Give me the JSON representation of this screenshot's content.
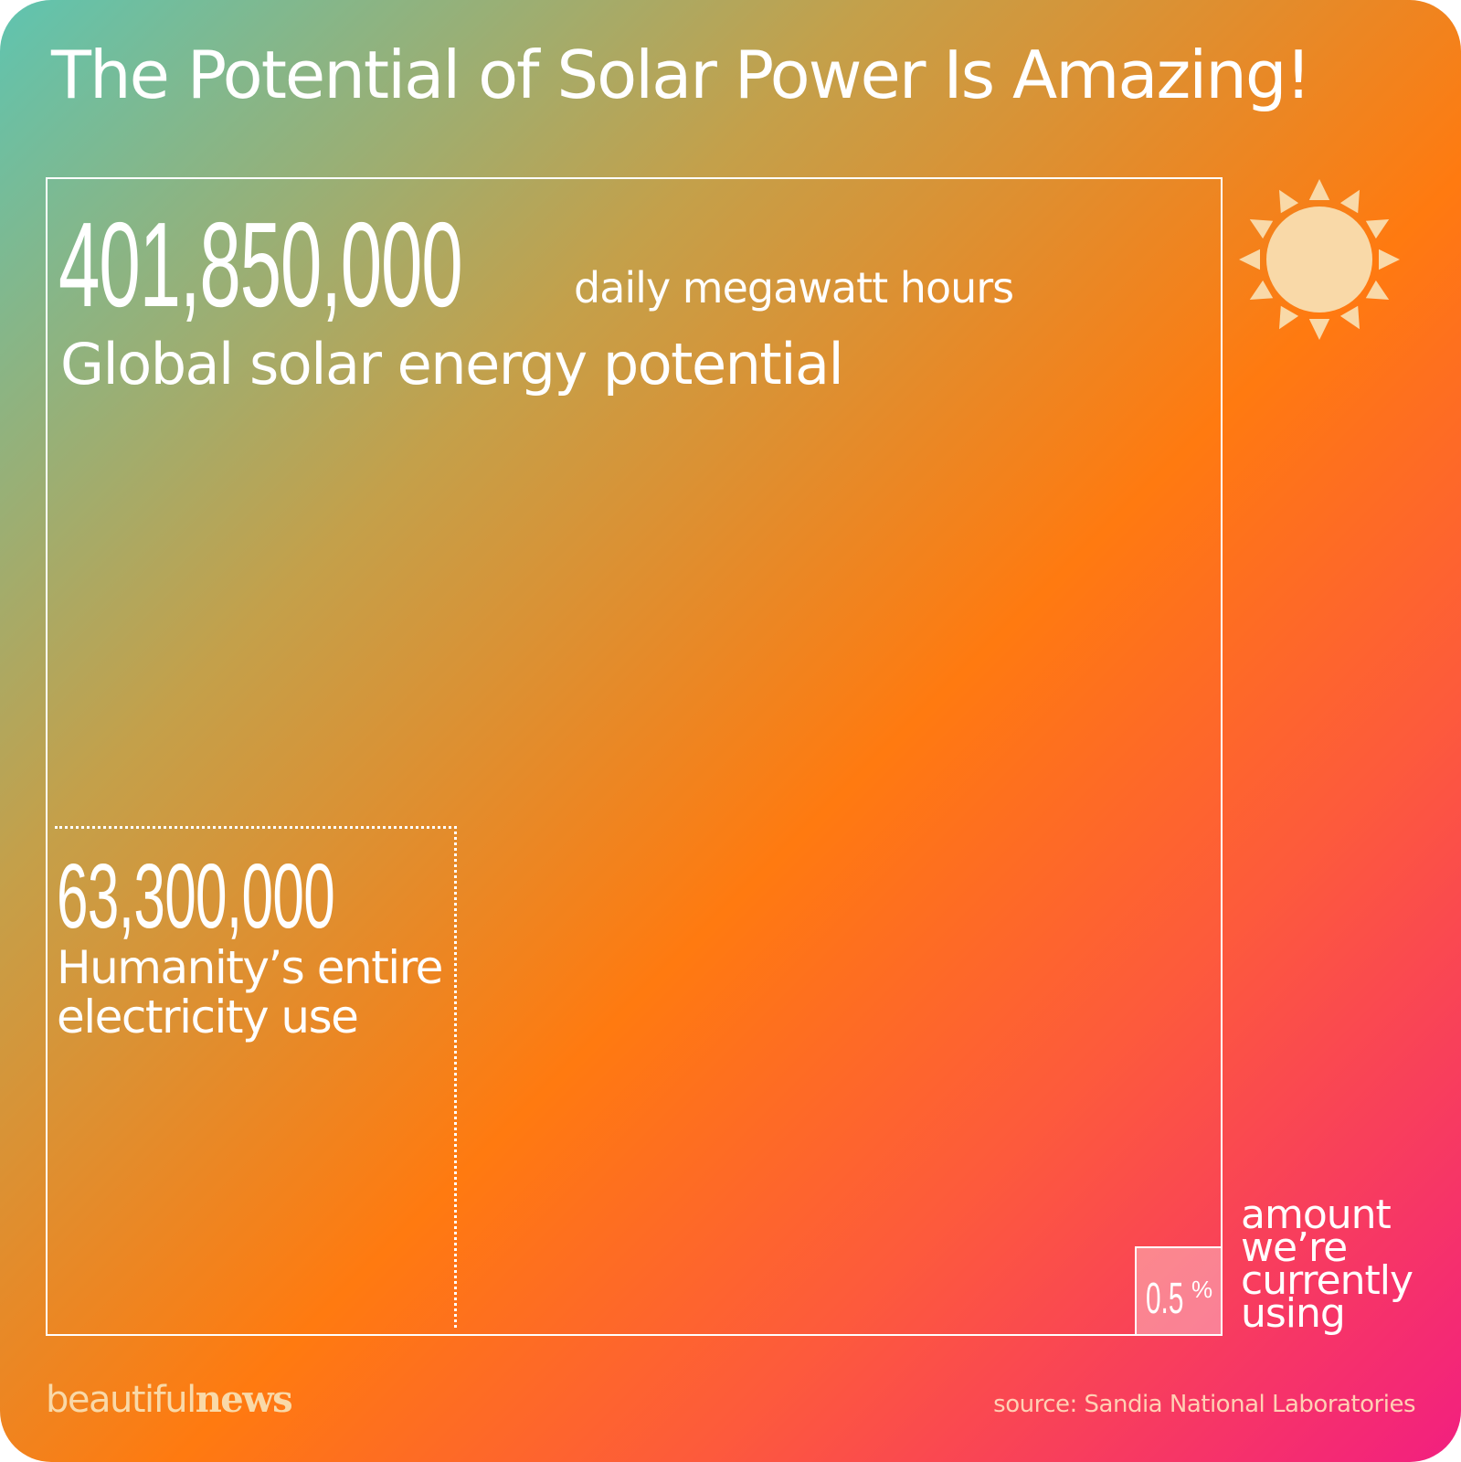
{
  "header": {
    "title": "The Potential of Solar Power Is Amazing!"
  },
  "chart_data": {
    "type": "area",
    "unit": "daily megawatt hours",
    "items": [
      {
        "label": "Global solar energy potential",
        "value": 401850000,
        "display": "401,850,000"
      },
      {
        "label": "Humanity’s entire electricity use",
        "value": 63300000,
        "display": "63,300,000",
        "label_lines": [
          "Humanity’s entire",
          "electricity use"
        ]
      },
      {
        "label": "amount we’re currently using",
        "value": 0.5,
        "display": "0.5",
        "suffix": "%",
        "label_lines": [
          "amount",
          "we’re",
          "currently",
          "using"
        ]
      }
    ]
  },
  "brand": {
    "name_light": "beautiful",
    "name_bold": "news"
  },
  "source": "source: Sandia National Laboratories",
  "colors": {
    "sun_fill": "#f9d9a8",
    "brand": "#f9d9a8",
    "box_border": "#ffffff"
  },
  "icons": {
    "sun": "sun-icon"
  }
}
